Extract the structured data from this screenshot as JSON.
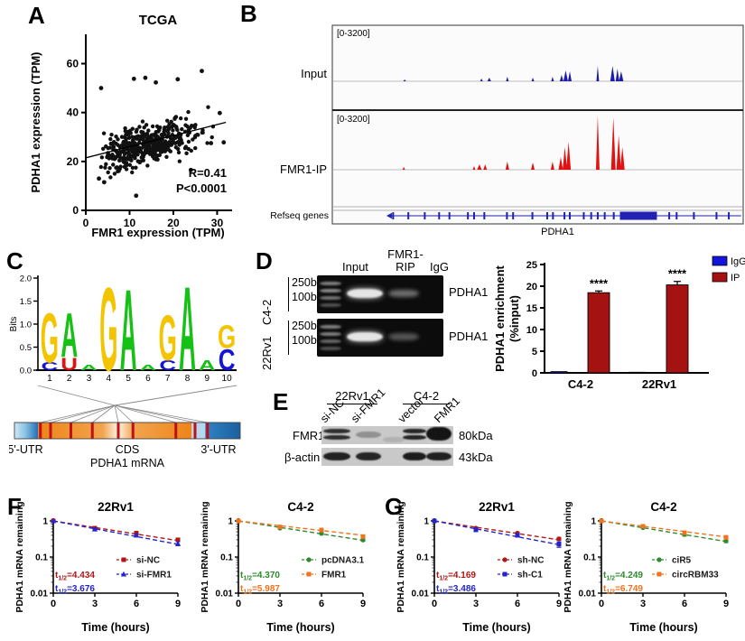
{
  "panels": {
    "A": {
      "letter": "A"
    },
    "B": {
      "letter": "B",
      "track_labels": [
        "Input",
        "FMR1-IP",
        "Refseq genes"
      ],
      "range_labels": [
        "[0-3200]",
        "[0-3200]"
      ],
      "gene_label": "PDHA1"
    },
    "C": {
      "letter": "C"
    },
    "D": {
      "letter": "D",
      "gel": {
        "lane_headers": [
          "Input",
          "FMR1-\nRIP",
          "IgG"
        ],
        "rows": [
          {
            "cell_line": "C4-2",
            "marker_labels": [
              "250bp",
              "100bp"
            ],
            "gene": "PDHA1",
            "band_intensities": {
              "ladder": [
                0.5,
                0.55,
                0.45,
                0.3
              ],
              "input": 0.95,
              "rip": 0.42,
              "igg": 0
            }
          },
          {
            "cell_line": "22Rv1",
            "marker_labels": [
              "250bp",
              "100bp"
            ],
            "gene": "PDHA1",
            "band_intensities": {
              "ladder": [
                0.5,
                0.5,
                0.4,
                0.3
              ],
              "input": 0.95,
              "rip": 0.32,
              "igg": 0
            }
          }
        ]
      }
    },
    "E": {
      "letter": "E",
      "groups": [
        {
          "cell_line": "22Rv1",
          "lanes": [
            "si-NC",
            "si-FMR1"
          ]
        },
        {
          "cell_line": "C4-2",
          "lanes": [
            "vector",
            "FMR1"
          ]
        }
      ],
      "rows": [
        {
          "protein": "FMR1",
          "size": "80kDa",
          "band_intensities": [
            0.85,
            0.3,
            0.12,
            0.9,
            1.0
          ]
        },
        {
          "protein": "β-actin",
          "size": "43kDa",
          "band_intensities": [
            0.92,
            0.9,
            0,
            0.95,
            0.93
          ]
        }
      ]
    },
    "F": {
      "letter": "F"
    },
    "G": {
      "letter": "G"
    }
  },
  "chart_data": [
    {
      "id": "tcga",
      "type": "scatter",
      "title": "TCGA",
      "xlabel": "FMR1 expression (TPM)",
      "ylabel": "PDHA1 expression (TPM)",
      "xlim": [
        0,
        33
      ],
      "ylim": [
        0,
        72
      ],
      "xticks": [
        0,
        10,
        20,
        30
      ],
      "yticks": [
        0,
        20,
        40,
        60
      ],
      "annotation": [
        "R=0.41",
        "P<0.0001"
      ],
      "trendline": {
        "x1": 0,
        "y1": 21.5,
        "x2": 32,
        "y2": 36
      },
      "cloud": {
        "n": 430,
        "seed": 7,
        "slope": 0.47,
        "intercept": 20,
        "noise": 6.5,
        "x_skew": 1.35,
        "x_span": 31,
        "x_min": 2
      },
      "outliers": [
        [
          3.5,
          50
        ],
        [
          11,
          53.8
        ],
        [
          13.6,
          54.2
        ],
        [
          16,
          52.3
        ],
        [
          21,
          53.6
        ],
        [
          26.5,
          57
        ],
        [
          11.5,
          6
        ],
        [
          30.6,
          39.8
        ],
        [
          24,
          16.5
        ],
        [
          3,
          13
        ],
        [
          4.2,
          11.5
        ],
        [
          28.6,
          27.5
        ],
        [
          31.5,
          27.8
        ]
      ],
      "point_color": "#111111"
    },
    {
      "id": "rip_coverage",
      "type": "coverage",
      "tracks": [
        {
          "name": "Input",
          "range": "[0-3200]",
          "color": "#1c1ca8",
          "peaks": [
            [
              0.176,
              2,
              3
            ],
            [
              0.363,
              3,
              3
            ],
            [
              0.382,
              4,
              4
            ],
            [
              0.426,
              5,
              3
            ],
            [
              0.488,
              4,
              3
            ],
            [
              0.536,
              5,
              3
            ],
            [
              0.558,
              7,
              4
            ],
            [
              0.568,
              12,
              5
            ],
            [
              0.578,
              11,
              4
            ],
            [
              0.646,
              17,
              3
            ],
            [
              0.682,
              17,
              5
            ],
            [
              0.694,
              14,
              4
            ],
            [
              0.703,
              11,
              5
            ]
          ]
        },
        {
          "name": "FMR1-IP",
          "range": "[0-3200]",
          "color": "#e11212",
          "peaks": [
            [
              0.174,
              3,
              3
            ],
            [
              0.345,
              4,
              3
            ],
            [
              0.358,
              6,
              5
            ],
            [
              0.372,
              6,
              4
            ],
            [
              0.426,
              9,
              4
            ],
            [
              0.488,
              8,
              4
            ],
            [
              0.536,
              9,
              4
            ],
            [
              0.556,
              14,
              5
            ],
            [
              0.566,
              25,
              5
            ],
            [
              0.575,
              31,
              5
            ],
            [
              0.646,
              60,
              4
            ],
            [
              0.684,
              58,
              5
            ],
            [
              0.697,
              38,
              5
            ],
            [
              0.706,
              25,
              5
            ]
          ]
        }
      ],
      "refseq": {
        "name": "Refseq genes",
        "gene": "PDHA1",
        "color": "#2121b4",
        "exons": [
          0.148,
          0.185,
          0.225,
          0.26,
          0.285,
          0.33,
          0.345,
          0.37,
          0.425,
          0.44,
          0.487,
          0.523,
          0.537,
          0.565,
          0.578,
          0.612,
          0.63,
          0.646,
          0.663,
          0.685,
          0.82,
          0.838,
          0.88,
          0.935,
          0.965
        ],
        "block": [
          0.7,
          0.79
        ]
      }
    },
    {
      "id": "motif_logo",
      "type": "sequence_logo",
      "ylabel": "Bits",
      "yticks": [
        0.0,
        0.5,
        1.0,
        1.5,
        2.0
      ],
      "xticks": [
        1,
        2,
        3,
        4,
        5,
        6,
        7,
        8,
        9,
        10
      ],
      "colors": {
        "G": "#f3c500",
        "A": "#15c115",
        "C": "#1414d8",
        "U": "#e01212"
      },
      "stacks": [
        [
          [
            "C",
            0.18
          ],
          [
            "G",
            1.12
          ]
        ],
        [
          [
            "U",
            0.28
          ],
          [
            "A",
            1.0
          ]
        ],
        [
          [
            "A",
            0.12
          ]
        ],
        [
          [
            "G",
            1.88
          ]
        ],
        [
          [
            "A",
            1.84
          ]
        ],
        [
          [
            "A",
            0.12
          ]
        ],
        [
          [
            "C",
            0.22
          ],
          [
            "G",
            1.02
          ]
        ],
        [
          [
            "A",
            1.9
          ]
        ],
        [
          [
            "A",
            0.22
          ]
        ],
        [
          [
            "C",
            0.48
          ],
          [
            "G",
            0.52
          ]
        ]
      ]
    },
    {
      "id": "mrna_map",
      "type": "diagram",
      "regions": [
        "5'-UTR",
        "CDS",
        "3'-UTR"
      ],
      "label": "PDHA1 mRNA",
      "site_fractions": [
        0.115,
        0.16,
        0.25,
        0.345,
        0.46,
        0.525,
        0.715,
        0.8,
        0.855
      ],
      "site_color": "#c01016"
    },
    {
      "id": "rip_enrichment",
      "type": "bar",
      "ylabel_lines": [
        "PDHA1 enrichment",
        "(%input)"
      ],
      "categories": [
        "C4-2",
        "22Rv1"
      ],
      "ylim": [
        0,
        25
      ],
      "yticks": [
        0,
        5,
        10,
        15,
        20,
        25
      ],
      "series": [
        {
          "name": "IgG",
          "color": "#1414dc",
          "values": [
            0.3,
            0.15
          ],
          "errors": [
            0.1,
            0.1
          ]
        },
        {
          "name": "IP",
          "color": "#a51212",
          "values": [
            18.5,
            20.3
          ],
          "errors": [
            0.4,
            0.8
          ]
        }
      ],
      "significance": [
        "****",
        "****"
      ]
    },
    {
      "id": "decay_f_22rv1",
      "type": "line",
      "title": "22Rv1",
      "xlabel": "Time (hours)",
      "ylabel": "PDHA1 mRNA remaining",
      "x": [
        0,
        3,
        6,
        9
      ],
      "yscale": "log10",
      "ylim": [
        0.01,
        1
      ],
      "yticks": [
        1,
        0.1,
        0.01
      ],
      "series": [
        {
          "name": "si-NC",
          "color": "#b21616",
          "marker": "square",
          "values": [
            1,
            0.63,
            0.46,
            0.3
          ],
          "errors": [
            0,
            0.05,
            0.04,
            0.03
          ],
          "fit_end": 0.285,
          "t_half": "4.434"
        },
        {
          "name": "si-FMR1",
          "color": "#2424c8",
          "marker": "triangle",
          "values": [
            1,
            0.59,
            0.4,
            0.235
          ],
          "errors": [
            0,
            0.04,
            0.04,
            0.03
          ],
          "fit_end": 0.225,
          "t_half": "3.676"
        }
      ]
    },
    {
      "id": "decay_f_c42",
      "type": "line",
      "title": "C4-2",
      "xlabel": "Time (hours)",
      "ylabel": "PDHA1 mRNA remaining",
      "x": [
        0,
        3,
        6,
        9
      ],
      "yscale": "log10",
      "ylim": [
        0.01,
        1
      ],
      "yticks": [
        1,
        0.1,
        0.01
      ],
      "series": [
        {
          "name": "pcDNA3.1",
          "color": "#2d8a2d",
          "marker": "circle",
          "values": [
            1,
            0.63,
            0.45,
            0.295
          ],
          "errors": [
            0,
            0.03,
            0.03,
            0.02
          ],
          "fit_end": 0.29,
          "t_half": "4.370"
        },
        {
          "name": "FMR1",
          "color": "#ee7420",
          "marker": "square",
          "values": [
            1,
            0.68,
            0.56,
            0.37
          ],
          "errors": [
            0,
            0.04,
            0.06,
            0.04
          ],
          "fit_end": 0.4,
          "t_half": "5.987"
        }
      ]
    },
    {
      "id": "decay_g_22rv1",
      "type": "line",
      "title": "22Rv1",
      "xlabel": "Time (hours)",
      "ylabel": "PDHA1 mRNA remaining",
      "x": [
        0,
        3,
        6,
        9
      ],
      "yscale": "log10",
      "ylim": [
        0.01,
        1
      ],
      "yticks": [
        1,
        0.1,
        0.01
      ],
      "series": [
        {
          "name": "sh-NC",
          "color": "#b21616",
          "marker": "circle",
          "values": [
            1,
            0.63,
            0.46,
            0.32
          ],
          "errors": [
            0,
            0.03,
            0.03,
            0.03
          ],
          "fit_end": 0.3,
          "t_half": "4.169"
        },
        {
          "name": "sh-C1",
          "color": "#2424c8",
          "marker": "square",
          "values": [
            1,
            0.565,
            0.4,
            0.225
          ],
          "errors": [
            0,
            0.04,
            0.04,
            0.04
          ],
          "fit_end": 0.22,
          "t_half": "3.486"
        }
      ]
    },
    {
      "id": "decay_g_c42",
      "type": "line",
      "title": "C4-2",
      "legend_x": 100,
      "xlabel": "Time (hours)",
      "ylabel": "PDHA1 mRNA remaining",
      "x": [
        0,
        3,
        6,
        9
      ],
      "yscale": "log10",
      "ylim": [
        0.01,
        1
      ],
      "yticks": [
        1,
        0.1,
        0.01
      ],
      "series": [
        {
          "name": "ciR5",
          "color": "#2d8a2d",
          "marker": "circle",
          "values": [
            1,
            0.65,
            0.42,
            0.28
          ],
          "errors": [
            0,
            0.03,
            0.04,
            0.03
          ],
          "fit_end": 0.27,
          "t_half": "4.249"
        },
        {
          "name": "circRBM33",
          "color": "#ee7420",
          "marker": "square",
          "values": [
            1,
            0.71,
            0.47,
            0.35
          ],
          "errors": [
            0,
            0.03,
            0.05,
            0.04
          ],
          "fit_end": 0.36,
          "t_half": "6.749"
        }
      ]
    }
  ]
}
